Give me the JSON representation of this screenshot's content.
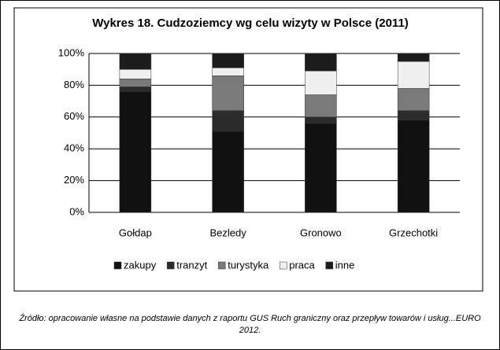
{
  "chart_data": {
    "type": "stacked_bar",
    "title": "Wykres 18. Cudzoziemcy wg celu wizyty w Polsce (2011)",
    "categories": [
      "Gołdap",
      "Bezledy",
      "Gronowo",
      "Grzechotki"
    ],
    "series": [
      {
        "name": "zakupy",
        "color": "#111111",
        "values": [
          76,
          51,
          56,
          58
        ]
      },
      {
        "name": "tranzyt",
        "color": "#2b2b2b",
        "values": [
          3,
          13,
          4,
          6
        ]
      },
      {
        "name": "turystyka",
        "color": "#7a7a7a",
        "values": [
          5,
          22,
          14,
          14
        ]
      },
      {
        "name": "praca",
        "color": "#f0f0f0",
        "values": [
          6,
          5,
          15,
          17
        ]
      },
      {
        "name": "inne",
        "color": "#1c1c1c",
        "values": [
          10,
          9,
          11,
          5
        ]
      }
    ],
    "ylim": [
      0,
      100
    ],
    "yticks": [
      {
        "value": 0,
        "label": "0%"
      },
      {
        "value": 20,
        "label": "20%"
      },
      {
        "value": 40,
        "label": "40%"
      },
      {
        "value": 60,
        "label": "60%"
      },
      {
        "value": 80,
        "label": "80%"
      },
      {
        "value": 100,
        "label": "100%"
      }
    ],
    "grid": true,
    "legend": "bottom",
    "note": "Źródło: opracowanie własne na podstawie danych z raportu GUS Ruch graniczny oraz przepływ towarów i usług...EURO 2012."
  }
}
